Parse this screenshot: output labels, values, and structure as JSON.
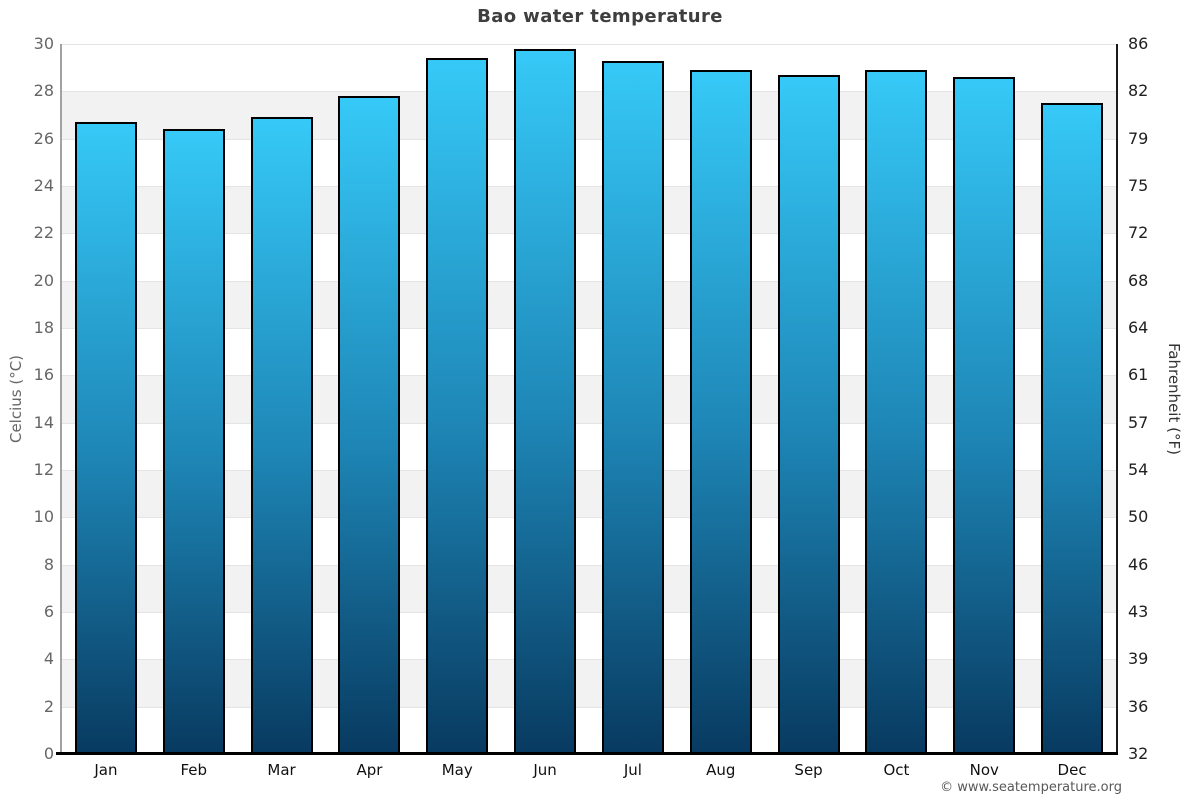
{
  "title": "Bao water temperature",
  "footer_credit": "© www.seatemperature.org",
  "axes": {
    "left_title": "Celcius (°C)",
    "right_title": "Fahrenheit (°F)",
    "left_ticks": [
      "30",
      "28",
      "26",
      "24",
      "22",
      "20",
      "18",
      "16",
      "14",
      "12",
      "10",
      "8",
      "6",
      "4",
      "2",
      "0"
    ],
    "right_ticks": [
      "86",
      "82",
      "79",
      "75",
      "72",
      "68",
      "64",
      "61",
      "57",
      "54",
      "50",
      "46",
      "43",
      "39",
      "36",
      "32"
    ]
  },
  "chart_data": {
    "type": "bar",
    "title": "Bao water temperature",
    "categories": [
      "Jan",
      "Feb",
      "Mar",
      "Apr",
      "May",
      "Jun",
      "Jul",
      "Aug",
      "Sep",
      "Oct",
      "Nov",
      "Dec"
    ],
    "values": [
      26.7,
      26.4,
      26.9,
      27.8,
      29.4,
      29.8,
      29.3,
      28.9,
      28.7,
      28.9,
      28.6,
      27.5
    ],
    "units": "°C",
    "xlabel": "",
    "ylabel": "Celcius (°C)",
    "y2label": "Fahrenheit (°F)",
    "ylim": [
      0,
      30
    ],
    "y2lim": [
      32,
      86
    ],
    "tick_step_celsius": 2,
    "grid": "alternating horizontal bands every 2°C",
    "legend": "none"
  },
  "colors": {
    "bar_gradient_top": "#36c9f7",
    "bar_gradient_mid": "#1e87b7",
    "bar_gradient_bottom": "#083a60",
    "bar_border": "#000000",
    "band_alt": "#f2f2f3",
    "gridline": "#e4e4e4",
    "axis_left_line": "#a2a2a2",
    "axis_right_line": "#1b1b1b",
    "axis_bottom_line": "#000000",
    "title_text": "#3e3e3e",
    "left_tick_text": "#666666",
    "right_tick_text": "#1f1f1f",
    "month_text": "#101010",
    "footer_text": "#585858"
  }
}
